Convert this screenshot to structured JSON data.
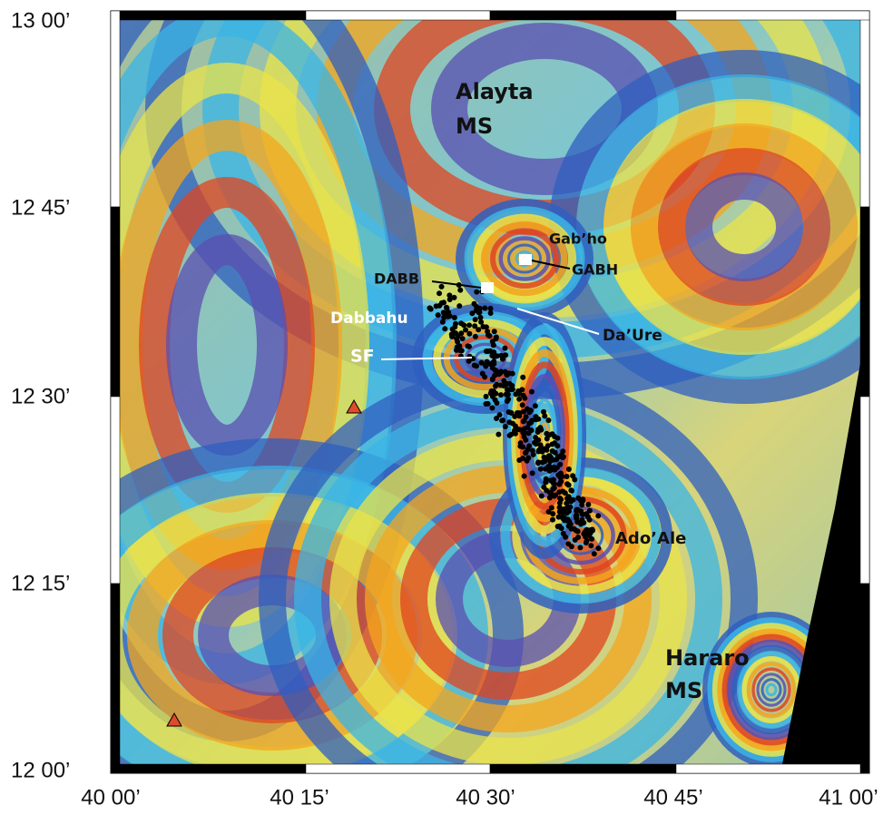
{
  "axes": {
    "latitude_labels": [
      "13 00’",
      "12 45’",
      "12 30’",
      "12 15’",
      "12 00’"
    ],
    "longitude_labels": [
      "40 00’",
      "40 15’",
      "40 30’",
      "40 45’",
      "41 00’"
    ]
  },
  "labels": {
    "alayta": [
      "Alayta",
      "MS"
    ],
    "gabho": "Gab’ho",
    "gabh": "GABH",
    "dabb": "DABB",
    "dabbahu": "Dabbahu",
    "daure": "Da’Ure",
    "sf": "SF",
    "adoale": "Ado’Ale",
    "hararo": [
      "Hararo",
      "MS"
    ]
  }
}
